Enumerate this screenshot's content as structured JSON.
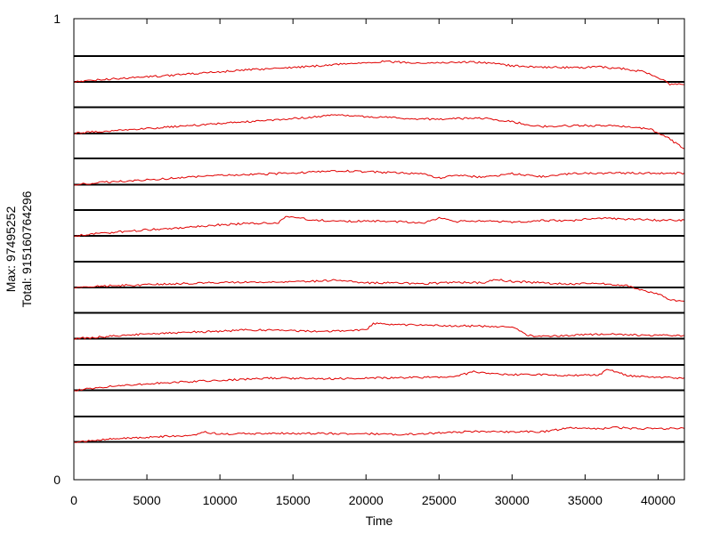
{
  "chart_data": {
    "type": "line",
    "title": "",
    "xlabel": "Time",
    "ylabel_lines": [
      "Max: 97495252",
      "Total: 915160764296"
    ],
    "xlim": [
      0,
      41800
    ],
    "ylim": [
      0,
      1
    ],
    "y_tick_labels": [
      "1",
      "0"
    ],
    "x_ticks": [
      0,
      5000,
      10000,
      15000,
      20000,
      25000,
      30000,
      35000,
      40000
    ],
    "x_tick_labels": [
      "0",
      "5000",
      "10000",
      "15000",
      "20000",
      "25000",
      "30000",
      "35000",
      "40000"
    ],
    "grid": false,
    "legend": "none",
    "line_color": "#e00000",
    "band_line_color": "#000000",
    "band_lines_y": [
      0.082,
      0.137,
      0.194,
      0.249,
      0.306,
      0.362,
      0.417,
      0.473,
      0.529,
      0.585,
      0.64,
      0.697,
      0.751,
      0.808,
      0.863,
      0.919
    ],
    "series": [
      {
        "baseline": 0.863,
        "x": [
          0,
          2000,
          5000,
          8000,
          10000,
          12000,
          14000,
          16000,
          18000,
          20000,
          21000,
          22000,
          24000,
          26000,
          27000,
          28000,
          30000,
          32000,
          34000,
          36000,
          37500,
          39000,
          40000,
          40800,
          41800
        ],
        "y": [
          0.863,
          0.868,
          0.874,
          0.88,
          0.885,
          0.889,
          0.893,
          0.896,
          0.901,
          0.905,
          0.907,
          0.906,
          0.904,
          0.905,
          0.906,
          0.905,
          0.898,
          0.895,
          0.894,
          0.895,
          0.892,
          0.885,
          0.872,
          0.858,
          0.857
        ]
      },
      {
        "baseline": 0.751,
        "x": [
          0,
          2000,
          5000,
          8000,
          10000,
          12000,
          14000,
          16000,
          18000,
          20000,
          22000,
          24000,
          26000,
          28000,
          30000,
          31000,
          32000,
          34000,
          36000,
          38000,
          39500,
          40500,
          41200,
          41800
        ],
        "y": [
          0.751,
          0.756,
          0.762,
          0.768,
          0.773,
          0.777,
          0.781,
          0.786,
          0.791,
          0.788,
          0.785,
          0.782,
          0.783,
          0.784,
          0.777,
          0.77,
          0.766,
          0.768,
          0.768,
          0.766,
          0.76,
          0.745,
          0.73,
          0.718
        ]
      },
      {
        "baseline": 0.64,
        "x": [
          0,
          2000,
          5000,
          8000,
          10000,
          12000,
          14000,
          16000,
          18000,
          20000,
          22000,
          24000,
          25000,
          26000,
          28000,
          30000,
          32000,
          34000,
          36000,
          38000,
          40000,
          41800
        ],
        "y": [
          0.64,
          0.645,
          0.651,
          0.656,
          0.66,
          0.662,
          0.664,
          0.667,
          0.67,
          0.668,
          0.666,
          0.663,
          0.654,
          0.661,
          0.656,
          0.664,
          0.657,
          0.664,
          0.665,
          0.665,
          0.665,
          0.665
        ]
      },
      {
        "baseline": 0.529,
        "x": [
          0,
          2000,
          5000,
          8000,
          10000,
          12000,
          14000,
          14500,
          16000,
          18000,
          20000,
          22000,
          24000,
          25000,
          26000,
          28000,
          30000,
          32000,
          34000,
          36000,
          38000,
          40000,
          41800
        ],
        "y": [
          0.529,
          0.535,
          0.542,
          0.548,
          0.553,
          0.556,
          0.557,
          0.572,
          0.565,
          0.56,
          0.561,
          0.56,
          0.558,
          0.568,
          0.56,
          0.561,
          0.559,
          0.562,
          0.562,
          0.568,
          0.565,
          0.563,
          0.563
        ]
      },
      {
        "baseline": 0.417,
        "x": [
          0,
          2000,
          5000,
          8000,
          10000,
          12000,
          14000,
          16000,
          18000,
          20000,
          22000,
          24000,
          26000,
          28000,
          29000,
          30000,
          32000,
          34000,
          36000,
          38000,
          39000,
          40000,
          41000,
          41800
        ],
        "y": [
          0.417,
          0.42,
          0.423,
          0.426,
          0.428,
          0.429,
          0.428,
          0.43,
          0.433,
          0.427,
          0.427,
          0.425,
          0.428,
          0.427,
          0.434,
          0.43,
          0.427,
          0.424,
          0.426,
          0.42,
          0.411,
          0.402,
          0.389,
          0.387
        ]
      },
      {
        "baseline": 0.306,
        "x": [
          0,
          2000,
          5000,
          8000,
          10000,
          12000,
          14000,
          16000,
          18000,
          20000,
          20500,
          22000,
          24000,
          26000,
          28000,
          30000,
          31000,
          32000,
          34000,
          36000,
          38000,
          40000,
          41800
        ],
        "y": [
          0.306,
          0.31,
          0.316,
          0.32,
          0.322,
          0.325,
          0.324,
          0.322,
          0.322,
          0.325,
          0.339,
          0.336,
          0.335,
          0.334,
          0.333,
          0.332,
          0.313,
          0.311,
          0.313,
          0.316,
          0.314,
          0.313,
          0.313
        ]
      },
      {
        "baseline": 0.194,
        "x": [
          0,
          2000,
          5000,
          8000,
          10000,
          12000,
          14000,
          16000,
          18000,
          20000,
          22000,
          24000,
          26000,
          27500,
          28000,
          30000,
          32000,
          34000,
          36000,
          36500,
          38000,
          40000,
          41800
        ],
        "y": [
          0.194,
          0.201,
          0.208,
          0.213,
          0.216,
          0.218,
          0.221,
          0.219,
          0.219,
          0.221,
          0.221,
          0.222,
          0.223,
          0.235,
          0.232,
          0.228,
          0.228,
          0.226,
          0.228,
          0.24,
          0.225,
          0.222,
          0.221
        ]
      },
      {
        "baseline": 0.082,
        "x": [
          0,
          2000,
          5000,
          8000,
          9000,
          10000,
          12000,
          14000,
          16000,
          18000,
          20000,
          22000,
          24000,
          26000,
          28000,
          30000,
          32000,
          34000,
          36000,
          37000,
          38000,
          40000,
          41800
        ],
        "y": [
          0.082,
          0.087,
          0.092,
          0.096,
          0.103,
          0.099,
          0.1,
          0.101,
          0.1,
          0.1,
          0.1,
          0.098,
          0.1,
          0.103,
          0.105,
          0.104,
          0.104,
          0.112,
          0.11,
          0.114,
          0.111,
          0.111,
          0.111
        ]
      }
    ]
  }
}
